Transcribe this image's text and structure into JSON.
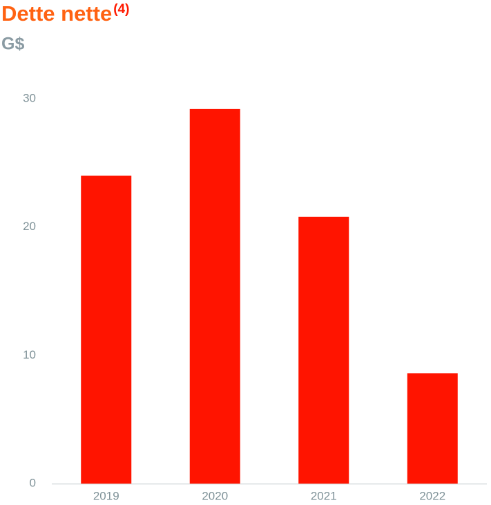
{
  "chart_data": {
    "type": "bar",
    "title": "Dette nette",
    "title_note": "(4)",
    "subtitle": "G$",
    "categories": [
      "2019",
      "2020",
      "2021",
      "2022"
    ],
    "values": [
      24.0,
      29.2,
      20.8,
      8.6
    ],
    "color": "#ff1400",
    "ylim": [
      0,
      30
    ],
    "yticks": [
      0,
      10,
      20,
      30
    ],
    "grid": false
  }
}
